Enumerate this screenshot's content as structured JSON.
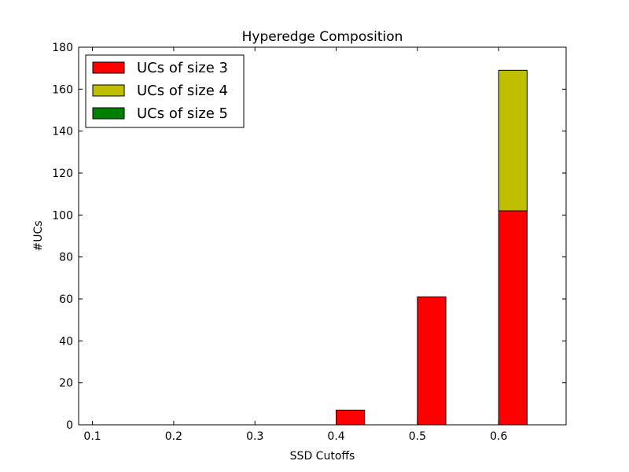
{
  "chart_data": {
    "type": "bar",
    "stacked": true,
    "title": "Hyperedge Composition",
    "xlabel": "SSD Cutoffs",
    "ylabel": "#UCs",
    "x": [
      0.1,
      0.2,
      0.3,
      0.4,
      0.5,
      0.6
    ],
    "xtick_labels": [
      "0.1",
      "0.2",
      "0.3",
      "0.4",
      "0.5",
      "0.6"
    ],
    "xlim": [
      0.083,
      0.683
    ],
    "ylim": [
      0,
      180
    ],
    "yticks": [
      0,
      20,
      40,
      60,
      80,
      100,
      120,
      140,
      160,
      180
    ],
    "grid": false,
    "legend_position": "top-left",
    "series": [
      {
        "name": "UCs of size 3",
        "color": "#ff0000",
        "values": [
          0,
          0,
          0,
          7,
          61,
          102
        ]
      },
      {
        "name": "UCs of size 4",
        "color": "#bfbf00",
        "values": [
          0,
          0,
          0,
          0,
          0,
          67
        ]
      },
      {
        "name": "UCs of size 5",
        "color": "#008000",
        "values": [
          0,
          0,
          0,
          0,
          0,
          0
        ]
      }
    ]
  }
}
